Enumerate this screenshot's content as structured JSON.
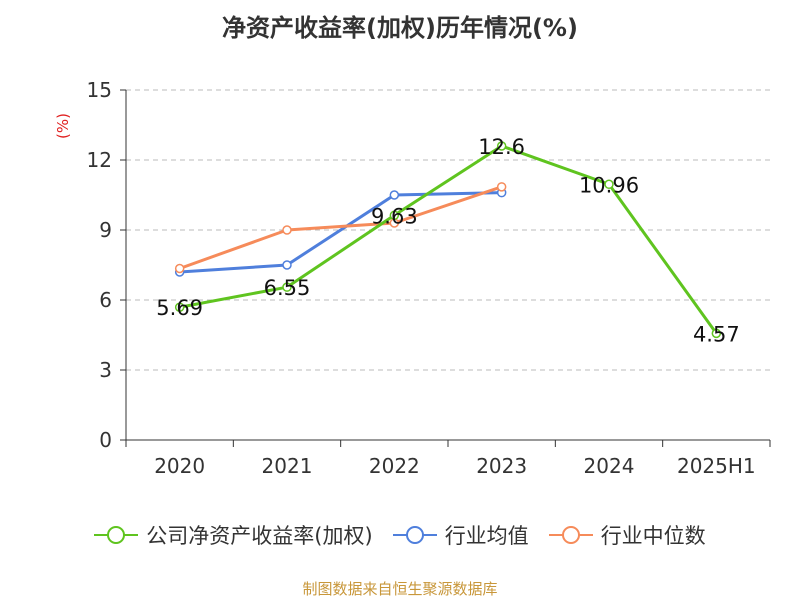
{
  "chart_data": {
    "type": "line",
    "title": "净资产收益率(加权)历年情况(%)",
    "ylabel": "(%)",
    "categories": [
      "2020",
      "2021",
      "2022",
      "2023",
      "2024",
      "2025H1"
    ],
    "ylim": [
      0,
      15
    ],
    "yticks": [
      0,
      3,
      6,
      9,
      12,
      15
    ],
    "grid": true,
    "legend_position": "bottom",
    "series": [
      {
        "name": "公司净资产收益率(加权)",
        "color": "#5fc41f",
        "values": [
          5.69,
          6.55,
          9.63,
          12.6,
          10.96,
          4.57
        ],
        "show_labels": true
      },
      {
        "name": "行业均值",
        "color": "#4f7fdc",
        "values": [
          7.2,
          7.5,
          10.5,
          10.6,
          null,
          null
        ],
        "show_labels": false
      },
      {
        "name": "行业中位数",
        "color": "#f68b5a",
        "values": [
          7.35,
          9.0,
          9.3,
          10.85,
          null,
          null
        ],
        "show_labels": false
      }
    ],
    "data_labels": [
      "5.69",
      "6.55",
      "9.63",
      "12.6",
      "10.96",
      "4.57"
    ]
  },
  "source": "制图数据来自恒生聚源数据库"
}
